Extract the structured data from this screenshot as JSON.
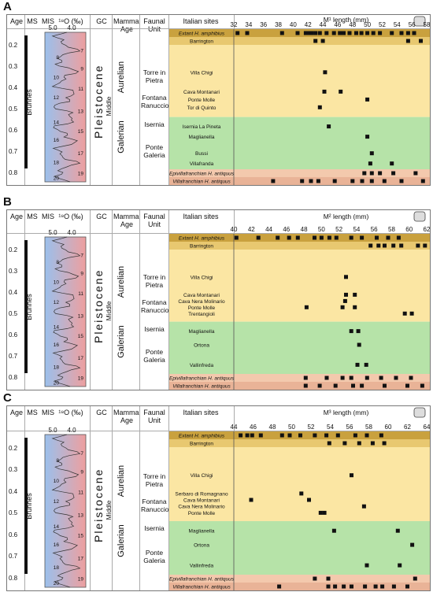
{
  "headers": {
    "age": "Age",
    "ms": "MS",
    "mis": "MIS",
    "o18": "¹⁸O (‰)",
    "gc": "GC",
    "mammal_age": "Mammal Age",
    "faunal_unit": "Faunal Unit",
    "italian_sites": "Italian sites"
  },
  "chron": {
    "brunhes": "Brunhes",
    "pleistocene": "Pleistocene",
    "middle": "Middle",
    "aurelian": "Aurelian",
    "galerian": "Galerian"
  },
  "age_ticks": [
    "0.2",
    "0.3",
    "0.4",
    "0.5",
    "0.6",
    "0.7",
    "0.8"
  ],
  "faunal_units": {
    "torre": "Torre in Pietra",
    "fontana": "Fontana Ranuccio",
    "isernia": "Isernia",
    "ponte": "Ponte Galeria"
  },
  "colors": {
    "amphibius": "#c9a13e",
    "barrington": "#e8c870",
    "aurelian_bg": "#fbe6a3",
    "galerian_bg": "#b6e3a8",
    "epivilla": "#f3c9ad",
    "villa": "#e9b397",
    "mis_blue": "#9bc0ec",
    "mis_red": "#ee9f9f"
  },
  "chart_data": [
    {
      "type": "scatter",
      "panel": "A",
      "title": "",
      "xlabel": "M¹ length (mm)",
      "xlim": [
        32,
        58
      ],
      "xticks": [
        "32",
        "34",
        "36",
        "38",
        "40",
        "42",
        "44",
        "46",
        "48",
        "50",
        "52",
        "54",
        "56",
        "58"
      ],
      "mis_ticks": [
        {
          "label": "7",
          "age": 0.23
        },
        {
          "label": "8",
          "age": 0.26
        },
        {
          "label": "9",
          "age": 0.31
        },
        {
          "label": "10",
          "age": 0.35
        },
        {
          "label": "11",
          "age": 0.4
        },
        {
          "label": "12",
          "age": 0.44
        },
        {
          "label": "13",
          "age": 0.5
        },
        {
          "label": "14",
          "age": 0.55
        },
        {
          "label": "15",
          "age": 0.59
        },
        {
          "label": "16",
          "age": 0.63
        },
        {
          "label": "17",
          "age": 0.69
        },
        {
          "label": "18",
          "age": 0.73
        },
        {
          "label": "19",
          "age": 0.78
        },
        {
          "label": "20",
          "age": 0.8
        }
      ],
      "d18o_ticks": [
        "5.0",
        "4.0"
      ],
      "site_rows": [
        {
          "label": "Extant H. amphibius",
          "band": "amphibius",
          "italic": true,
          "values": [
            32.5,
            33.8,
            38.5,
            40.6,
            41.7,
            42,
            42.5,
            43,
            43.6,
            44.5,
            45.5,
            46.3,
            46.8,
            47.6,
            48.5,
            49.2,
            50,
            50.8,
            51.7,
            53.3,
            54.6,
            55.5,
            56.3
          ]
        },
        {
          "label": "Barrington",
          "band": "barrington",
          "values": [
            43,
            44,
            55.5,
            57.2,
            59
          ]
        },
        {
          "label": "Villa Chigi",
          "band": "aurelian",
          "values": [
            44.3
          ]
        },
        {
          "label": "Cava Montanari",
          "band": "aurelian",
          "values": [
            44.2,
            46.4
          ]
        },
        {
          "label": "Ponte Molle",
          "band": "aurelian",
          "values": [
            50
          ]
        },
        {
          "label": "Tor di Quinto",
          "band": "aurelian",
          "values": [
            43.6
          ]
        },
        {
          "label": "Isernia La Pineta",
          "band": "galerian",
          "values": [
            44.8
          ]
        },
        {
          "label": "Maglianella",
          "band": "galerian",
          "values": [
            50
          ]
        },
        {
          "label": "Bussi",
          "band": "galerian",
          "values": [
            50.6
          ]
        },
        {
          "label": "Villafranda",
          "band": "galerian",
          "values": [
            50.4,
            53.3
          ]
        },
        {
          "label": "Epivillafranchian H. antiquus",
          "band": "epivilla",
          "italic": true,
          "values": [
            49.6,
            50.6,
            51.7,
            53.5,
            56.5
          ]
        },
        {
          "label": "Villafranchian H. antiquus",
          "band": "villa",
          "italic": true,
          "values": [
            37.3,
            41.2,
            42.4,
            43.4,
            45.6,
            48,
            49.3,
            50.6,
            52.3,
            54.6,
            57.5
          ]
        }
      ]
    },
    {
      "type": "scatter",
      "panel": "B",
      "title": "",
      "xlabel": "M² length (mm)",
      "xlim": [
        40,
        62
      ],
      "xticks": [
        "40",
        "42",
        "44",
        "46",
        "48",
        "50",
        "52",
        "54",
        "56",
        "58",
        "60",
        "62"
      ],
      "mis_ticks": [
        {
          "label": "7",
          "age": 0.23
        },
        {
          "label": "8",
          "age": 0.26
        },
        {
          "label": "9",
          "age": 0.31
        },
        {
          "label": "10",
          "age": 0.35
        },
        {
          "label": "11",
          "age": 0.4
        },
        {
          "label": "12",
          "age": 0.44
        },
        {
          "label": "13",
          "age": 0.5
        },
        {
          "label": "14",
          "age": 0.55
        },
        {
          "label": "15",
          "age": 0.59
        },
        {
          "label": "16",
          "age": 0.63
        },
        {
          "label": "17",
          "age": 0.69
        },
        {
          "label": "18",
          "age": 0.73
        },
        {
          "label": "19",
          "age": 0.78
        },
        {
          "label": "20",
          "age": 0.8
        }
      ],
      "d18o_ticks": [
        "5.0",
        "4.0"
      ],
      "site_rows": [
        {
          "label": "Extant H. amphibius",
          "band": "amphibius",
          "italic": true,
          "values": [
            40.3,
            42.8,
            45,
            46.3,
            47.3,
            49.2,
            50,
            50.9,
            51.7,
            53.4,
            54.6,
            56.3,
            57.6,
            58.8
          ]
        },
        {
          "label": "Barrington",
          "band": "barrington",
          "values": [
            55.6,
            56.5,
            57.2,
            58.2,
            59.1,
            61,
            61.8
          ]
        },
        {
          "label": "Villa Chigi",
          "band": "aurelian",
          "values": [
            52.8
          ]
        },
        {
          "label": "Cava Montanari",
          "band": "aurelian",
          "values": [
            52.8,
            53.8
          ]
        },
        {
          "label": "Cava Nera Molinario",
          "band": "aurelian",
          "values": [
            52.7
          ]
        },
        {
          "label": "Ponte Molle",
          "band": "aurelian",
          "values": [
            48.3,
            52.4,
            53.8
          ]
        },
        {
          "label": "Trentangioli",
          "band": "aurelian",
          "values": [
            59.5,
            60.3
          ]
        },
        {
          "label": "Maglianella",
          "band": "galerian",
          "values": [
            53.4,
            54.2
          ]
        },
        {
          "label": "Ortona",
          "band": "galerian",
          "values": [
            54.3
          ]
        },
        {
          "label": "Vallinfreda",
          "band": "galerian",
          "values": [
            54.1,
            55.1
          ]
        },
        {
          "label": "Epivillafranchian H. antiquus",
          "band": "epivilla",
          "italic": true,
          "values": [
            48.2,
            50.6,
            52.4,
            53.4,
            55.2,
            56.8,
            58.5,
            60.2
          ]
        },
        {
          "label": "Villafranchian H. antiquus",
          "band": "villa",
          "italic": true,
          "values": [
            48.2,
            49.8,
            51.6,
            53.6,
            54.6,
            57.2,
            59.8,
            61.5
          ]
        }
      ]
    },
    {
      "type": "scatter",
      "panel": "C",
      "title": "",
      "xlabel": "M³ length (mm)",
      "xlim": [
        44,
        64
      ],
      "xticks": [
        "44",
        "46",
        "48",
        "50",
        "52",
        "54",
        "56",
        "58",
        "60",
        "62",
        "64"
      ],
      "mis_ticks": [
        {
          "label": "7",
          "age": 0.23
        },
        {
          "label": "8",
          "age": 0.26
        },
        {
          "label": "9",
          "age": 0.31
        },
        {
          "label": "10",
          "age": 0.35
        },
        {
          "label": "11",
          "age": 0.4
        },
        {
          "label": "12",
          "age": 0.44
        },
        {
          "label": "13",
          "age": 0.5
        },
        {
          "label": "14",
          "age": 0.55
        },
        {
          "label": "15",
          "age": 0.59
        },
        {
          "label": "16",
          "age": 0.63
        },
        {
          "label": "17",
          "age": 0.69
        },
        {
          "label": "18",
          "age": 0.73
        },
        {
          "label": "19",
          "age": 0.78
        },
        {
          "label": "20",
          "age": 0.8
        }
      ],
      "d18o_ticks": [
        "5.0",
        "4.0"
      ],
      "site_rows": [
        {
          "label": "Extant H. amphibius",
          "band": "amphibius",
          "italic": true,
          "values": [
            44.7,
            45.4,
            45.9,
            46.8,
            49,
            49.8,
            50.9,
            52.4,
            53.6,
            54.8,
            56.6,
            57.8,
            59.3
          ]
        },
        {
          "label": "Barrington",
          "band": "barrington",
          "values": [
            53.9,
            55.5,
            57,
            58.4,
            59.6
          ]
        },
        {
          "label": "Villa Chigi",
          "band": "aurelian",
          "values": [
            56.2
          ]
        },
        {
          "label": "Serbaro di Romagnano",
          "band": "aurelian",
          "values": [
            51
          ]
        },
        {
          "label": "Cava Montanari",
          "band": "aurelian",
          "values": [
            45.8,
            51.8
          ]
        },
        {
          "label": "Cava Nera Molinario",
          "band": "aurelian",
          "values": [
            57.5
          ]
        },
        {
          "label": "Ponte Molle",
          "band": "aurelian",
          "values": [
            53,
            53.4
          ]
        },
        {
          "label": "Maglianella",
          "band": "galerian",
          "values": [
            54.4,
            61
          ]
        },
        {
          "label": "Ortona",
          "band": "galerian",
          "values": [
            62.5
          ]
        },
        {
          "label": "Vallinfreda",
          "band": "galerian",
          "values": [
            57.8,
            61.2
          ]
        },
        {
          "label": "Epivillafranchian H. antiquus",
          "band": "epivilla",
          "italic": true,
          "values": [
            52.4,
            53.8,
            62.8
          ]
        },
        {
          "label": "Villafranchian H. antiquus",
          "band": "villa",
          "italic": true,
          "values": [
            48.7,
            53.8,
            54.5,
            55.4,
            56.2,
            57.6,
            58.7,
            59.4,
            60.6,
            62
          ]
        }
      ]
    }
  ]
}
